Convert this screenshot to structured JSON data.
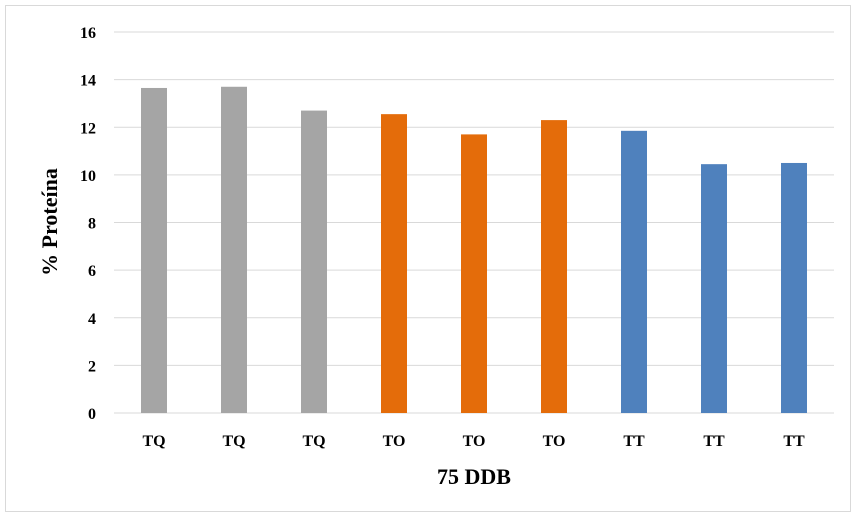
{
  "chart_data": {
    "type": "bar",
    "title": "",
    "xlabel": "75 DDB",
    "ylabel": "% Proteína",
    "ylim": [
      0,
      16
    ],
    "yticks": [
      0,
      2,
      4,
      6,
      8,
      10,
      12,
      14,
      16
    ],
    "grid": true,
    "legend": "none",
    "categories": [
      "TQ",
      "TQ",
      "TQ",
      "TO",
      "TO",
      "TO",
      "TT",
      "TT",
      "TT"
    ],
    "values": [
      13.65,
      13.7,
      12.7,
      12.55,
      11.7,
      12.3,
      11.85,
      10.45,
      10.5
    ],
    "bar_colors": [
      "#a5a5a5",
      "#a5a5a5",
      "#a5a5a5",
      "#e46c0a",
      "#e46c0a",
      "#e46c0a",
      "#4f81bd",
      "#4f81bd",
      "#4f81bd"
    ]
  }
}
